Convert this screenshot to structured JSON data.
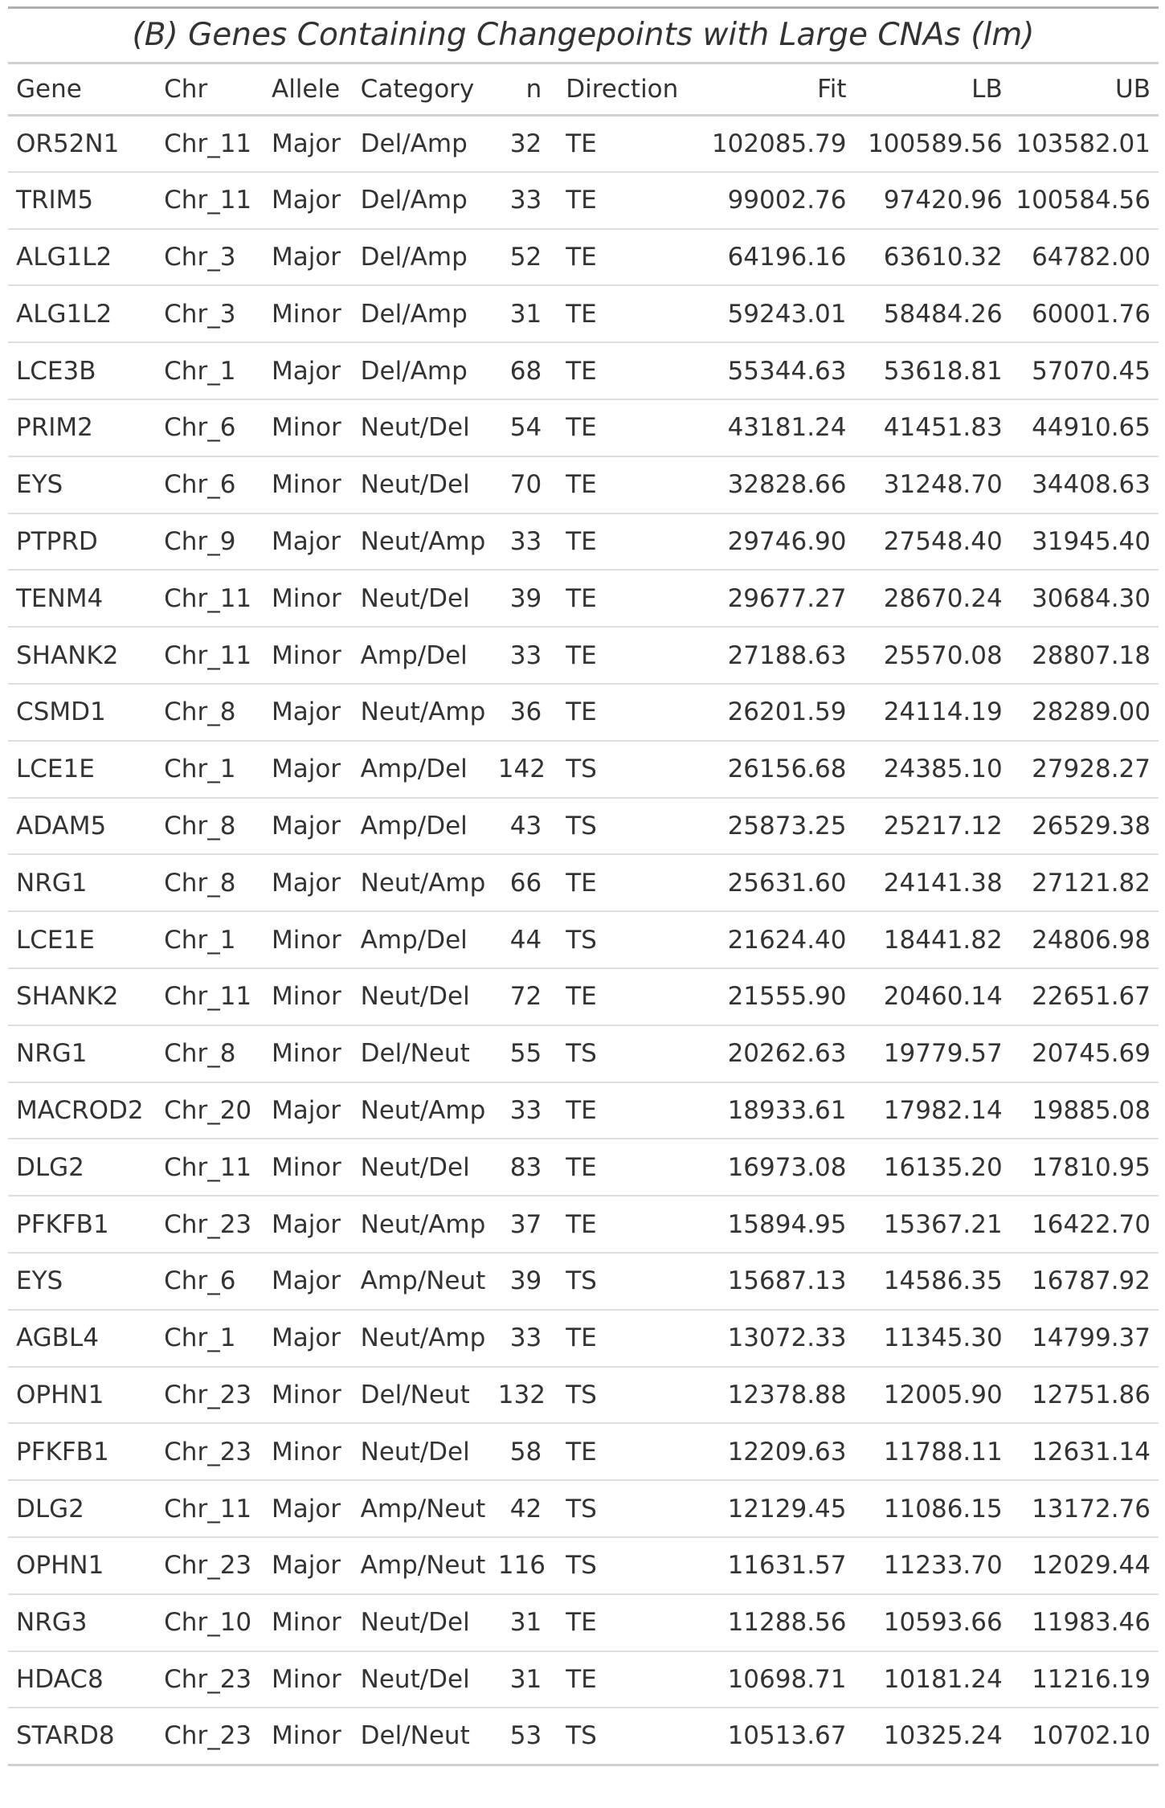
{
  "caption": "(B) Genes Containing Changepoints with Large CNAs (lm)",
  "columns": {
    "gene": "Gene",
    "chr": "Chr",
    "allele": "Allele",
    "category": "Category",
    "n": "n",
    "direction": "Direction",
    "fit": "Fit",
    "lb": "LB",
    "ub": "UB"
  },
  "rows": [
    {
      "gene": "OR52N1",
      "chr": "Chr_11",
      "allele": "Major",
      "category": "Del/Amp",
      "n": "32",
      "direction": "TE",
      "fit": "102085.79",
      "lb": "100589.56",
      "ub": "103582.01"
    },
    {
      "gene": "TRIM5",
      "chr": "Chr_11",
      "allele": "Major",
      "category": "Del/Amp",
      "n": "33",
      "direction": "TE",
      "fit": "99002.76",
      "lb": "97420.96",
      "ub": "100584.56"
    },
    {
      "gene": "ALG1L2",
      "chr": "Chr_3",
      "allele": "Major",
      "category": "Del/Amp",
      "n": "52",
      "direction": "TE",
      "fit": "64196.16",
      "lb": "63610.32",
      "ub": "64782.00"
    },
    {
      "gene": "ALG1L2",
      "chr": "Chr_3",
      "allele": "Minor",
      "category": "Del/Amp",
      "n": "31",
      "direction": "TE",
      "fit": "59243.01",
      "lb": "58484.26",
      "ub": "60001.76"
    },
    {
      "gene": "LCE3B",
      "chr": "Chr_1",
      "allele": "Major",
      "category": "Del/Amp",
      "n": "68",
      "direction": "TE",
      "fit": "55344.63",
      "lb": "53618.81",
      "ub": "57070.45"
    },
    {
      "gene": "PRIM2",
      "chr": "Chr_6",
      "allele": "Minor",
      "category": "Neut/Del",
      "n": "54",
      "direction": "TE",
      "fit": "43181.24",
      "lb": "41451.83",
      "ub": "44910.65"
    },
    {
      "gene": "EYS",
      "chr": "Chr_6",
      "allele": "Minor",
      "category": "Neut/Del",
      "n": "70",
      "direction": "TE",
      "fit": "32828.66",
      "lb": "31248.70",
      "ub": "34408.63"
    },
    {
      "gene": "PTPRD",
      "chr": "Chr_9",
      "allele": "Major",
      "category": "Neut/Amp",
      "n": "33",
      "direction": "TE",
      "fit": "29746.90",
      "lb": "27548.40",
      "ub": "31945.40"
    },
    {
      "gene": "TENM4",
      "chr": "Chr_11",
      "allele": "Minor",
      "category": "Neut/Del",
      "n": "39",
      "direction": "TE",
      "fit": "29677.27",
      "lb": "28670.24",
      "ub": "30684.30"
    },
    {
      "gene": "SHANK2",
      "chr": "Chr_11",
      "allele": "Minor",
      "category": "Amp/Del",
      "n": "33",
      "direction": "TE",
      "fit": "27188.63",
      "lb": "25570.08",
      "ub": "28807.18"
    },
    {
      "gene": "CSMD1",
      "chr": "Chr_8",
      "allele": "Major",
      "category": "Neut/Amp",
      "n": "36",
      "direction": "TE",
      "fit": "26201.59",
      "lb": "24114.19",
      "ub": "28289.00"
    },
    {
      "gene": "LCE1E",
      "chr": "Chr_1",
      "allele": "Major",
      "category": "Amp/Del",
      "n": "142",
      "direction": "TS",
      "fit": "26156.68",
      "lb": "24385.10",
      "ub": "27928.27"
    },
    {
      "gene": "ADAM5",
      "chr": "Chr_8",
      "allele": "Major",
      "category": "Amp/Del",
      "n": "43",
      "direction": "TS",
      "fit": "25873.25",
      "lb": "25217.12",
      "ub": "26529.38"
    },
    {
      "gene": "NRG1",
      "chr": "Chr_8",
      "allele": "Major",
      "category": "Neut/Amp",
      "n": "66",
      "direction": "TE",
      "fit": "25631.60",
      "lb": "24141.38",
      "ub": "27121.82"
    },
    {
      "gene": "LCE1E",
      "chr": "Chr_1",
      "allele": "Minor",
      "category": "Amp/Del",
      "n": "44",
      "direction": "TS",
      "fit": "21624.40",
      "lb": "18441.82",
      "ub": "24806.98"
    },
    {
      "gene": "SHANK2",
      "chr": "Chr_11",
      "allele": "Minor",
      "category": "Neut/Del",
      "n": "72",
      "direction": "TE",
      "fit": "21555.90",
      "lb": "20460.14",
      "ub": "22651.67"
    },
    {
      "gene": "NRG1",
      "chr": "Chr_8",
      "allele": "Minor",
      "category": "Del/Neut",
      "n": "55",
      "direction": "TS",
      "fit": "20262.63",
      "lb": "19779.57",
      "ub": "20745.69"
    },
    {
      "gene": "MACROD2",
      "chr": "Chr_20",
      "allele": "Major",
      "category": "Neut/Amp",
      "n": "33",
      "direction": "TE",
      "fit": "18933.61",
      "lb": "17982.14",
      "ub": "19885.08"
    },
    {
      "gene": "DLG2",
      "chr": "Chr_11",
      "allele": "Minor",
      "category": "Neut/Del",
      "n": "83",
      "direction": "TE",
      "fit": "16973.08",
      "lb": "16135.20",
      "ub": "17810.95"
    },
    {
      "gene": "PFKFB1",
      "chr": "Chr_23",
      "allele": "Major",
      "category": "Neut/Amp",
      "n": "37",
      "direction": "TE",
      "fit": "15894.95",
      "lb": "15367.21",
      "ub": "16422.70"
    },
    {
      "gene": "EYS",
      "chr": "Chr_6",
      "allele": "Major",
      "category": "Amp/Neut",
      "n": "39",
      "direction": "TS",
      "fit": "15687.13",
      "lb": "14586.35",
      "ub": "16787.92"
    },
    {
      "gene": "AGBL4",
      "chr": "Chr_1",
      "allele": "Major",
      "category": "Neut/Amp",
      "n": "33",
      "direction": "TE",
      "fit": "13072.33",
      "lb": "11345.30",
      "ub": "14799.37"
    },
    {
      "gene": "OPHN1",
      "chr": "Chr_23",
      "allele": "Minor",
      "category": "Del/Neut",
      "n": "132",
      "direction": "TS",
      "fit": "12378.88",
      "lb": "12005.90",
      "ub": "12751.86"
    },
    {
      "gene": "PFKFB1",
      "chr": "Chr_23",
      "allele": "Minor",
      "category": "Neut/Del",
      "n": "58",
      "direction": "TE",
      "fit": "12209.63",
      "lb": "11788.11",
      "ub": "12631.14"
    },
    {
      "gene": "DLG2",
      "chr": "Chr_11",
      "allele": "Major",
      "category": "Amp/Neut",
      "n": "42",
      "direction": "TS",
      "fit": "12129.45",
      "lb": "11086.15",
      "ub": "13172.76"
    },
    {
      "gene": "OPHN1",
      "chr": "Chr_23",
      "allele": "Major",
      "category": "Amp/Neut",
      "n": "116",
      "direction": "TS",
      "fit": "11631.57",
      "lb": "11233.70",
      "ub": "12029.44"
    },
    {
      "gene": "NRG3",
      "chr": "Chr_10",
      "allele": "Minor",
      "category": "Neut/Del",
      "n": "31",
      "direction": "TE",
      "fit": "11288.56",
      "lb": "10593.66",
      "ub": "11983.46"
    },
    {
      "gene": "HDAC8",
      "chr": "Chr_23",
      "allele": "Minor",
      "category": "Neut/Del",
      "n": "31",
      "direction": "TE",
      "fit": "10698.71",
      "lb": "10181.24",
      "ub": "11216.19"
    },
    {
      "gene": "STARD8",
      "chr": "Chr_23",
      "allele": "Minor",
      "category": "Del/Neut",
      "n": "53",
      "direction": "TS",
      "fit": "10513.67",
      "lb": "10325.24",
      "ub": "10702.10"
    }
  ]
}
